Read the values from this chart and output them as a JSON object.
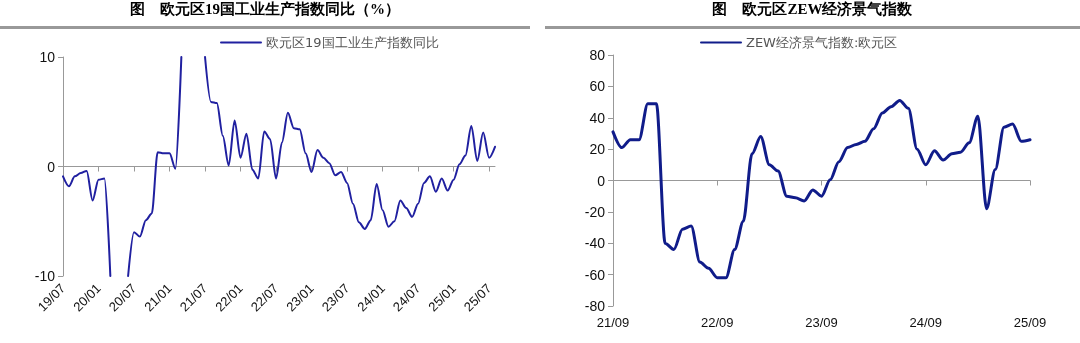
{
  "chart_data": [
    {
      "type": "line",
      "title": "图　欧元区19国工业生产指数同比（%）",
      "categories": [
        "19/07",
        null,
        null,
        null,
        null,
        null,
        "20/01",
        null,
        null,
        null,
        null,
        null,
        "20/07",
        null,
        null,
        null,
        null,
        null,
        "21/01",
        null,
        null,
        null,
        null,
        null,
        "21/07",
        null,
        null,
        null,
        null,
        null,
        "22/01",
        null,
        null,
        null,
        null,
        null,
        "22/07",
        null,
        null,
        null,
        null,
        null,
        "23/01",
        null,
        null,
        null,
        null,
        null,
        "23/07",
        null,
        null,
        null,
        null,
        null,
        "24/01",
        null,
        null,
        null,
        null,
        null,
        "24/07",
        null,
        null,
        null,
        null,
        null,
        "25/01",
        null,
        null,
        null,
        null,
        null,
        "25/07",
        null
      ],
      "series": [
        {
          "name": "欧元区19国工业生产指数同比",
          "color": "#2020a0",
          "values": [
            -0.9,
            -1.8,
            -0.9,
            -0.6,
            -0.4,
            -3.1,
            -1.2,
            -1.1,
            -10,
            null,
            null,
            -10,
            -6.0,
            -6.4,
            -4.9,
            -4.3,
            1.3,
            1.2,
            1.2,
            -0.2,
            10,
            null,
            null,
            null,
            10,
            5.9,
            5.8,
            2.8,
            0.1,
            4.2,
            0.8,
            3.0,
            -0.3,
            -1.1,
            3.2,
            2.5,
            -1.1,
            2.2,
            4.9,
            3.5,
            3.4,
            1.2,
            -0.5,
            1.5,
            0.8,
            0.3,
            -0.8,
            -0.5,
            -1.5,
            -3.4,
            -5.1,
            -5.7,
            -4.9,
            -1.6,
            -4.0,
            -5.5,
            -5.0,
            -3.1,
            -3.8,
            -4.6,
            -3.4,
            -1.5,
            -0.9,
            -2.3,
            -1.1,
            -2.2,
            -1.2,
            0.2,
            1.0,
            3.7,
            0.5,
            3.1,
            0.8,
            1.8
          ]
        }
      ],
      "ylim": [
        -10,
        10
      ],
      "yticks": [
        -10,
        0,
        10
      ],
      "legend": "top",
      "marker": "none"
    },
    {
      "type": "line",
      "title": "图　欧元区ZEW经济景气指数",
      "categories": [
        "21/09",
        null,
        null,
        null,
        null,
        null,
        null,
        null,
        null,
        null,
        null,
        null,
        "22/09",
        null,
        null,
        null,
        null,
        null,
        null,
        null,
        null,
        null,
        null,
        null,
        "23/09",
        null,
        null,
        null,
        null,
        null,
        null,
        null,
        null,
        null,
        null,
        null,
        "24/09",
        null,
        null,
        null,
        null,
        null,
        null,
        null,
        null,
        null,
        null,
        null,
        "25/09"
      ],
      "series": [
        {
          "name": "ZEW经济景气指数:欧元区",
          "color": "#101c8a",
          "values": [
            31,
            21,
            26,
            26,
            49,
            49,
            -40,
            -44,
            -31,
            -29,
            -52,
            -56,
            -62,
            -62,
            -44,
            -26,
            17,
            28,
            10,
            6,
            -10,
            -11,
            -13,
            -6,
            -10,
            0.5,
            12,
            21,
            23,
            25,
            33,
            43,
            47,
            51,
            46,
            20,
            10,
            19,
            13,
            17,
            18,
            24,
            41,
            -18,
            7,
            34,
            36,
            25,
            26
          ]
        }
      ],
      "ylim": [
        -80,
        80
      ],
      "yticks": [
        -80,
        -60,
        -40,
        -20,
        0,
        20,
        40,
        60,
        80
      ],
      "legend": "top",
      "marker": "none"
    }
  ]
}
